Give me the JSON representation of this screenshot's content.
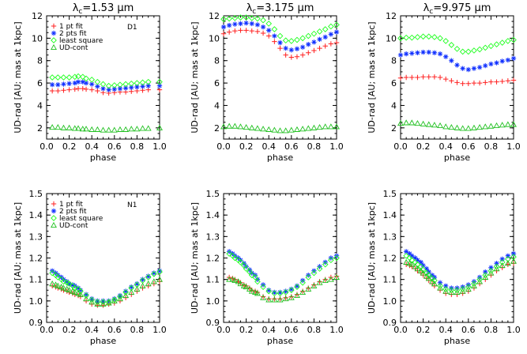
{
  "chart_data": [
    {
      "type": "scatter",
      "title_main": "λ",
      "title_sub": "c",
      "title_rest": "=1.53 μm",
      "tag": "D1",
      "xlabel": "phase",
      "ylabel": "UD-rad [AU; mas at 1kpc]",
      "xlim": [
        0.0,
        1.0
      ],
      "ylim": [
        1.0,
        12.0
      ],
      "xticks": [
        "0.0",
        "0.2",
        "0.4",
        "0.6",
        "0.8",
        "1.0"
      ],
      "yticks": [
        "2",
        "4",
        "6",
        "8",
        "10",
        "12"
      ],
      "legend": [
        "1 pt fit",
        "2 pts fit",
        "least square",
        "UD-cont"
      ],
      "legend_position": "top-left",
      "x": [
        0.05,
        0.1,
        0.15,
        0.2,
        0.25,
        0.28,
        0.32,
        0.35,
        0.4,
        0.45,
        0.5,
        0.55,
        0.6,
        0.65,
        0.7,
        0.75,
        0.8,
        0.85,
        0.9,
        1.0
      ],
      "series": [
        {
          "name": "1 pt fit",
          "marker": "plus",
          "color": "#ff2020",
          "values": [
            5.3,
            5.3,
            5.35,
            5.4,
            5.45,
            5.5,
            5.5,
            5.45,
            5.4,
            5.3,
            5.15,
            5.1,
            5.15,
            5.2,
            5.2,
            5.25,
            5.3,
            5.35,
            5.4,
            5.4
          ]
        },
        {
          "name": "2 pts fit",
          "marker": "asterisk",
          "color": "#1030ff",
          "values": [
            5.85,
            5.85,
            5.9,
            5.95,
            6.0,
            6.1,
            6.1,
            6.0,
            5.9,
            5.7,
            5.5,
            5.4,
            5.45,
            5.5,
            5.55,
            5.6,
            5.65,
            5.7,
            5.75,
            5.75
          ]
        },
        {
          "name": "least square",
          "marker": "diamond",
          "color": "#20ff20",
          "values": [
            6.5,
            6.5,
            6.5,
            6.5,
            6.55,
            6.6,
            6.55,
            6.4,
            6.3,
            6.1,
            5.9,
            5.75,
            5.8,
            5.85,
            5.9,
            5.95,
            6.0,
            6.05,
            6.1,
            6.1
          ]
        },
        {
          "name": "UD-cont",
          "marker": "triangle",
          "color": "#20c020",
          "values": [
            2.05,
            2.05,
            2.0,
            2.0,
            1.95,
            1.95,
            1.9,
            1.9,
            1.85,
            1.85,
            1.8,
            1.8,
            1.8,
            1.85,
            1.85,
            1.9,
            1.9,
            1.95,
            1.95,
            2.0
          ]
        }
      ]
    },
    {
      "type": "scatter",
      "title_main": "λ",
      "title_sub": "c",
      "title_rest": "=3.175 μm",
      "xlabel": "phase",
      "ylabel": "UD-rad [AU; mas at 1kpc]",
      "xlim": [
        0.0,
        1.0
      ],
      "ylim": [
        1.0,
        12.0
      ],
      "xticks": [
        "0.0",
        "0.2",
        "0.4",
        "0.6",
        "0.8",
        "1.0"
      ],
      "yticks": [
        "2",
        "4",
        "6",
        "8",
        "10",
        "12"
      ],
      "x": [
        0.0,
        0.05,
        0.1,
        0.15,
        0.2,
        0.25,
        0.3,
        0.35,
        0.4,
        0.45,
        0.5,
        0.55,
        0.6,
        0.65,
        0.7,
        0.75,
        0.8,
        0.85,
        0.9,
        0.95,
        1.0
      ],
      "series": [
        {
          "name": "1 pt fit",
          "marker": "plus",
          "color": "#ff2020",
          "values": [
            10.4,
            10.55,
            10.65,
            10.7,
            10.7,
            10.65,
            10.6,
            10.45,
            10.2,
            9.7,
            9.1,
            8.5,
            8.3,
            8.35,
            8.5,
            8.7,
            8.9,
            9.1,
            9.3,
            9.5,
            9.6
          ]
        },
        {
          "name": "2 pts fit",
          "marker": "asterisk",
          "color": "#1030ff",
          "values": [
            11.0,
            11.15,
            11.25,
            11.3,
            11.35,
            11.3,
            11.2,
            11.0,
            10.7,
            10.2,
            9.6,
            9.1,
            8.95,
            9.05,
            9.2,
            9.45,
            9.65,
            9.9,
            10.1,
            10.35,
            10.55
          ]
        },
        {
          "name": "least square",
          "marker": "diamond",
          "color": "#20ff20",
          "values": [
            11.7,
            11.75,
            11.8,
            11.85,
            11.85,
            11.8,
            11.75,
            11.6,
            11.3,
            10.8,
            10.2,
            9.8,
            9.75,
            9.85,
            10.0,
            10.2,
            10.4,
            10.6,
            10.8,
            11.05,
            11.2
          ]
        },
        {
          "name": "UD-cont",
          "marker": "triangle",
          "color": "#20c020",
          "values": [
            2.1,
            2.15,
            2.15,
            2.1,
            2.05,
            2.0,
            1.95,
            1.9,
            1.85,
            1.8,
            1.75,
            1.75,
            1.8,
            1.85,
            1.9,
            1.95,
            2.0,
            2.05,
            2.1,
            2.1,
            2.1
          ]
        }
      ]
    },
    {
      "type": "scatter",
      "title_main": "λ",
      "title_sub": "c",
      "title_rest": "=9.975 μm",
      "xlabel": "phase",
      "ylabel": "UD-rad [AU; mas at 1kpc]",
      "xlim": [
        0.0,
        1.0
      ],
      "ylim": [
        1.0,
        12.0
      ],
      "xticks": [
        "0.0",
        "0.2",
        "0.4",
        "0.6",
        "0.8",
        "1.0"
      ],
      "yticks": [
        "2",
        "4",
        "6",
        "8",
        "10",
        "12"
      ],
      "x": [
        0.0,
        0.05,
        0.1,
        0.15,
        0.2,
        0.25,
        0.3,
        0.35,
        0.4,
        0.45,
        0.5,
        0.55,
        0.6,
        0.65,
        0.7,
        0.75,
        0.8,
        0.85,
        0.9,
        0.95,
        1.0
      ],
      "series": [
        {
          "name": "1 pt fit",
          "marker": "plus",
          "color": "#ff2020",
          "values": [
            6.45,
            6.5,
            6.5,
            6.5,
            6.55,
            6.55,
            6.55,
            6.5,
            6.35,
            6.2,
            6.05,
            5.95,
            5.95,
            6.0,
            6.0,
            6.05,
            6.1,
            6.1,
            6.15,
            6.2,
            6.25
          ]
        },
        {
          "name": "2 pts fit",
          "marker": "asterisk",
          "color": "#1030ff",
          "values": [
            8.5,
            8.6,
            8.65,
            8.7,
            8.75,
            8.75,
            8.7,
            8.6,
            8.35,
            8.0,
            7.6,
            7.3,
            7.2,
            7.3,
            7.4,
            7.55,
            7.7,
            7.8,
            7.95,
            8.05,
            8.2
          ]
        },
        {
          "name": "least square",
          "marker": "diamond",
          "color": "#20ff20",
          "values": [
            10.0,
            10.05,
            10.05,
            10.1,
            10.15,
            10.15,
            10.1,
            10.0,
            9.75,
            9.4,
            9.05,
            8.8,
            8.8,
            8.9,
            9.0,
            9.15,
            9.3,
            9.45,
            9.6,
            9.75,
            9.85
          ]
        },
        {
          "name": "UD-cont",
          "marker": "triangle",
          "color": "#20c020",
          "values": [
            2.4,
            2.45,
            2.45,
            2.4,
            2.35,
            2.3,
            2.25,
            2.2,
            2.1,
            2.05,
            2.0,
            1.95,
            1.95,
            2.0,
            2.05,
            2.1,
            2.15,
            2.2,
            2.25,
            2.3,
            2.3
          ]
        }
      ]
    },
    {
      "type": "scatter",
      "tag": "N1",
      "xlabel": "phase",
      "ylabel": "UD-rad [AU; mas at 1kpc]",
      "xlim": [
        0.0,
        1.0
      ],
      "ylim": [
        0.9,
        1.5
      ],
      "xticks": [
        "0.0",
        "0.2",
        "0.4",
        "0.6",
        "0.8",
        "1.0"
      ],
      "yticks": [
        "0.9",
        "1.0",
        "1.1",
        "1.2",
        "1.3",
        "1.4",
        "1.5"
      ],
      "legend": [
        "1 pt fit",
        "2 pts fit",
        "least square",
        "UD-cont"
      ],
      "legend_position": "top-left",
      "x": [
        0.05,
        0.08,
        0.1,
        0.13,
        0.15,
        0.18,
        0.2,
        0.23,
        0.25,
        0.28,
        0.3,
        0.35,
        0.4,
        0.45,
        0.5,
        0.55,
        0.6,
        0.65,
        0.7,
        0.75,
        0.8,
        0.85,
        0.9,
        0.95,
        1.0
      ],
      "series": [
        {
          "name": "1 pt fit",
          "marker": "plus",
          "color": "#ff2020",
          "values": [
            1.07,
            1.065,
            1.06,
            1.055,
            1.05,
            1.045,
            1.04,
            1.035,
            1.03,
            1.025,
            1.02,
            1.0,
            0.985,
            0.98,
            0.98,
            0.985,
            0.99,
            1.0,
            1.015,
            1.03,
            1.045,
            1.06,
            1.07,
            1.08,
            1.09
          ]
        },
        {
          "name": "2 pts fit",
          "marker": "asterisk",
          "color": "#1030ff",
          "values": [
            1.14,
            1.13,
            1.12,
            1.11,
            1.1,
            1.09,
            1.08,
            1.075,
            1.07,
            1.06,
            1.05,
            1.03,
            1.01,
            1.0,
            1.0,
            1.0,
            1.01,
            1.025,
            1.045,
            1.065,
            1.08,
            1.1,
            1.115,
            1.13,
            1.14
          ]
        },
        {
          "name": "least square",
          "marker": "diamond",
          "color": "#20ff20",
          "values": [
            1.13,
            1.12,
            1.11,
            1.1,
            1.09,
            1.085,
            1.08,
            1.07,
            1.06,
            1.055,
            1.045,
            1.025,
            1.005,
            0.995,
            0.995,
            0.995,
            1.005,
            1.02,
            1.04,
            1.06,
            1.075,
            1.095,
            1.11,
            1.125,
            1.135
          ]
        },
        {
          "name": "UD-cont",
          "marker": "triangle",
          "color": "#20c020",
          "values": [
            1.08,
            1.075,
            1.07,
            1.065,
            1.06,
            1.055,
            1.05,
            1.045,
            1.04,
            1.035,
            1.03,
            1.01,
            0.995,
            0.985,
            0.985,
            0.99,
            1.0,
            1.01,
            1.025,
            1.04,
            1.055,
            1.07,
            1.08,
            1.09,
            1.1
          ]
        }
      ]
    },
    {
      "type": "scatter",
      "xlabel": "phase",
      "ylabel": "UD-rad [AU; mas at 1kpc]",
      "xlim": [
        0.0,
        1.0
      ],
      "ylim": [
        0.9,
        1.5
      ],
      "xticks": [
        "0.0",
        "0.2",
        "0.4",
        "0.6",
        "0.8",
        "1.0"
      ],
      "yticks": [
        "0.9",
        "1.0",
        "1.1",
        "1.2",
        "1.3",
        "1.4",
        "1.5"
      ],
      "x": [
        0.05,
        0.08,
        0.1,
        0.13,
        0.15,
        0.18,
        0.2,
        0.23,
        0.25,
        0.28,
        0.3,
        0.35,
        0.4,
        0.45,
        0.5,
        0.55,
        0.6,
        0.65,
        0.7,
        0.75,
        0.8,
        0.85,
        0.9,
        0.95,
        1.0
      ],
      "series": [
        {
          "name": "1 pt fit",
          "marker": "plus",
          "color": "#ff2020",
          "values": [
            1.11,
            1.105,
            1.1,
            1.09,
            1.085,
            1.075,
            1.07,
            1.06,
            1.05,
            1.045,
            1.04,
            1.02,
            1.01,
            1.01,
            1.01,
            1.015,
            1.02,
            1.03,
            1.045,
            1.06,
            1.075,
            1.09,
            1.1,
            1.11,
            1.115
          ]
        },
        {
          "name": "2 pts fit",
          "marker": "asterisk",
          "color": "#1030ff",
          "values": [
            1.23,
            1.22,
            1.21,
            1.2,
            1.19,
            1.175,
            1.16,
            1.145,
            1.13,
            1.12,
            1.1,
            1.075,
            1.05,
            1.04,
            1.04,
            1.045,
            1.055,
            1.07,
            1.095,
            1.12,
            1.14,
            1.16,
            1.18,
            1.2,
            1.21
          ]
        },
        {
          "name": "least square",
          "marker": "diamond",
          "color": "#20ff20",
          "values": [
            1.22,
            1.21,
            1.2,
            1.19,
            1.18,
            1.165,
            1.15,
            1.135,
            1.12,
            1.11,
            1.09,
            1.065,
            1.045,
            1.035,
            1.035,
            1.04,
            1.05,
            1.065,
            1.085,
            1.11,
            1.13,
            1.15,
            1.17,
            1.19,
            1.2
          ]
        },
        {
          "name": "UD-cont",
          "marker": "triangle",
          "color": "#20c020",
          "values": [
            1.1,
            1.1,
            1.095,
            1.09,
            1.08,
            1.07,
            1.065,
            1.055,
            1.045,
            1.04,
            1.035,
            1.015,
            1.005,
            1.005,
            1.005,
            1.01,
            1.015,
            1.025,
            1.04,
            1.055,
            1.07,
            1.085,
            1.095,
            1.1,
            1.11
          ]
        }
      ]
    },
    {
      "type": "scatter",
      "xlabel": "phase",
      "ylabel": "UD-rad [AU; mas at 1kpc]",
      "xlim": [
        0.0,
        1.0
      ],
      "ylim": [
        0.9,
        1.5
      ],
      "xticks": [
        "0.0",
        "0.2",
        "0.4",
        "0.6",
        "0.8",
        "1.0"
      ],
      "yticks": [
        "0.9",
        "1.0",
        "1.1",
        "1.2",
        "1.3",
        "1.4",
        "1.5"
      ],
      "x": [
        0.05,
        0.08,
        0.1,
        0.13,
        0.15,
        0.18,
        0.2,
        0.23,
        0.25,
        0.28,
        0.3,
        0.35,
        0.4,
        0.45,
        0.5,
        0.55,
        0.6,
        0.65,
        0.7,
        0.75,
        0.8,
        0.85,
        0.9,
        0.95,
        1.0
      ],
      "series": [
        {
          "name": "1 pt fit",
          "marker": "plus",
          "color": "#ff2020",
          "values": [
            1.17,
            1.165,
            1.16,
            1.15,
            1.14,
            1.13,
            1.12,
            1.105,
            1.095,
            1.08,
            1.07,
            1.05,
            1.035,
            1.03,
            1.03,
            1.035,
            1.045,
            1.06,
            1.08,
            1.1,
            1.12,
            1.14,
            1.155,
            1.17,
            1.175
          ]
        },
        {
          "name": "2 pts fit",
          "marker": "asterisk",
          "color": "#1030ff",
          "values": [
            1.23,
            1.22,
            1.21,
            1.2,
            1.19,
            1.18,
            1.165,
            1.15,
            1.135,
            1.12,
            1.11,
            1.085,
            1.07,
            1.06,
            1.06,
            1.065,
            1.075,
            1.09,
            1.11,
            1.135,
            1.155,
            1.175,
            1.195,
            1.21,
            1.22
          ]
        },
        {
          "name": "least square",
          "marker": "diamond",
          "color": "#20ff20",
          "values": [
            1.21,
            1.2,
            1.19,
            1.18,
            1.17,
            1.16,
            1.145,
            1.13,
            1.12,
            1.105,
            1.095,
            1.07,
            1.055,
            1.05,
            1.05,
            1.055,
            1.065,
            1.08,
            1.1,
            1.12,
            1.14,
            1.16,
            1.18,
            1.195,
            1.205
          ]
        },
        {
          "name": "UD-cont",
          "marker": "triangle",
          "color": "#20c020",
          "values": [
            1.18,
            1.175,
            1.17,
            1.16,
            1.15,
            1.14,
            1.13,
            1.115,
            1.105,
            1.09,
            1.08,
            1.06,
            1.045,
            1.04,
            1.04,
            1.045,
            1.055,
            1.07,
            1.09,
            1.11,
            1.13,
            1.15,
            1.165,
            1.175,
            1.185
          ]
        }
      ]
    }
  ]
}
